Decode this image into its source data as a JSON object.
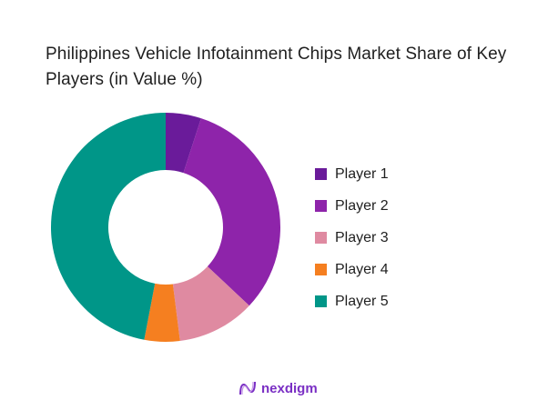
{
  "title": "Philippines Vehicle Infotainment Chips Market Share of Key Players (in Value %)",
  "brand": {
    "name": "nexdigm",
    "icon": "nexdigm-logo-icon",
    "color": "#7a2fc4"
  },
  "legend": [
    {
      "label": "Player 1",
      "color": "#6a1b9a"
    },
    {
      "label": "Player 2",
      "color": "#8e24aa"
    },
    {
      "label": "Player 3",
      "color": "#df8aa1"
    },
    {
      "label": "Player 4",
      "color": "#f57f20"
    },
    {
      "label": "Player 5",
      "color": "#009688"
    }
  ],
  "chart_data": {
    "type": "pie",
    "subtype": "donut",
    "title": "Philippines Vehicle Infotainment Chips Market Share of Key Players (in Value %)",
    "categories": [
      "Player 1",
      "Player 2",
      "Player 3",
      "Player 4",
      "Player 5"
    ],
    "values": [
      5,
      32,
      11,
      5,
      47
    ],
    "colors": [
      "#6a1b9a",
      "#8e24aa",
      "#df8aa1",
      "#f57f20",
      "#009688"
    ],
    "unit": "%",
    "legend_position": "right",
    "start_angle": "12 o'clock, clockwise"
  }
}
